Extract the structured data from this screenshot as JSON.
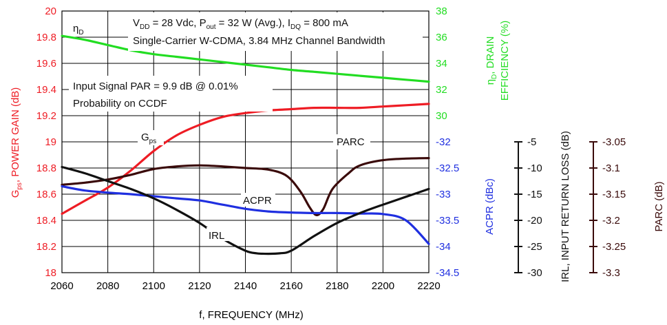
{
  "colors": {
    "gps": "#ee1c24",
    "eff": "#22dd22",
    "acpr": "#1f2fe0",
    "irl": "#111111",
    "parc": "#3a0a0a",
    "axis": "#000000"
  },
  "labels": {
    "x_title": "f, FREQUENCY (MHz)",
    "gps_axis_main": ", POWER GAIN (dB)",
    "gps_axis_G": "G",
    "gps_axis_sub": "ps",
    "eff_axis_line1_eta": "η",
    "eff_axis_line1_sub": "D",
    "eff_axis_line1_rest": ", DRAIN",
    "eff_axis_line2": "EFFICIENCY (%)",
    "acpr_axis": "ACPR (dBc)",
    "irl_axis": "IRL, INPUT RETURN LOSS (dB)",
    "parc_axis": "PARC (dB)",
    "series_eta": "η",
    "series_eta_sub": "D",
    "series_gps": "G",
    "series_gps_sub": "ps",
    "series_parc": "PARC",
    "series_acpr": "ACPR",
    "series_irl": "IRL",
    "cond_l1_a": "V",
    "cond_l1_a_sub": "DD",
    "cond_l1_b": " = 28 Vdc, P",
    "cond_l1_b_sub": "out",
    "cond_l1_c": " = 32 W (Avg.), I",
    "cond_l1_c_sub": "DQ",
    "cond_l1_d": " = 800 mA",
    "cond_l2": "Single-Carrier W-CDMA, 3.84 MHz Channel Bandwidth",
    "par_l1": "Input Signal PAR = 9.9 dB @ 0.01%",
    "par_l2": "Probability on CCDF"
  },
  "chart_data": {
    "type": "line",
    "x": [
      2060,
      2070,
      2080,
      2090,
      2100,
      2110,
      2120,
      2130,
      2140,
      2150,
      2160,
      2170,
      2180,
      2190,
      2200,
      2210,
      2220
    ],
    "xlim": [
      2060,
      2220
    ],
    "xticks": [
      "2060",
      "2080",
      "2100",
      "2120",
      "2140",
      "2160",
      "2180",
      "2200",
      "2220"
    ],
    "axes": {
      "gps": {
        "ylim": [
          18,
          20
        ],
        "ticks": [
          "20",
          "19.8",
          "19.6",
          "19.4",
          "19.2",
          "19",
          "18.8",
          "18.6",
          "18.4",
          "18.2",
          "18"
        ]
      },
      "eff": {
        "ylim": [
          30,
          38
        ],
        "ticks": [
          "38",
          "36",
          "34",
          "32",
          "30"
        ]
      },
      "acpr": {
        "ylim": [
          -34.5,
          -32
        ],
        "ticks": [
          "-32",
          "-32.5",
          "-33",
          "-33.5",
          "-34",
          "-34.5"
        ]
      },
      "irl": {
        "ylim": [
          -30,
          -5
        ],
        "ticks": [
          "-5",
          "-10",
          "-15",
          "-20",
          "-25",
          "-30"
        ]
      },
      "parc": {
        "ylim": [
          -3.3,
          -3.05
        ],
        "ticks": [
          "-3.05",
          "-3.1",
          "-3.15",
          "-3.2",
          "-3.25",
          "-3.3"
        ]
      }
    },
    "series": [
      {
        "name": "ηD",
        "axis": "eff",
        "x": [
          2060,
          2070,
          2080,
          2090,
          2100,
          2110,
          2120,
          2130,
          2140,
          2150,
          2160,
          2170,
          2180,
          2190,
          2200,
          2210,
          2220
        ],
        "values": [
          36.1,
          35.8,
          35.4,
          35.0,
          34.7,
          34.5,
          34.3,
          34.1,
          33.9,
          33.7,
          33.5,
          33.35,
          33.2,
          33.05,
          32.9,
          32.75,
          32.6
        ]
      },
      {
        "name": "Gps",
        "axis": "gps",
        "x": [
          2060,
          2070,
          2080,
          2090,
          2100,
          2110,
          2120,
          2130,
          2140,
          2150,
          2160,
          2170,
          2180,
          2190,
          2200,
          2210,
          2220
        ],
        "values": [
          18.45,
          18.55,
          18.65,
          18.78,
          18.93,
          19.05,
          19.13,
          19.19,
          19.22,
          19.24,
          19.25,
          19.26,
          19.26,
          19.26,
          19.27,
          19.28,
          19.29
        ]
      },
      {
        "name": "PARC",
        "axis": "parc",
        "x": [
          2060,
          2070,
          2080,
          2090,
          2100,
          2110,
          2120,
          2130,
          2140,
          2150,
          2158,
          2164,
          2168,
          2171,
          2174,
          2178,
          2185,
          2190,
          2200,
          2210,
          2220
        ],
        "values": [
          -3.132,
          -3.128,
          -3.122,
          -3.113,
          -3.102,
          -3.097,
          -3.095,
          -3.097,
          -3.1,
          -3.103,
          -3.115,
          -3.145,
          -3.175,
          -3.19,
          -3.178,
          -3.14,
          -3.11,
          -3.095,
          -3.085,
          -3.082,
          -3.081
        ]
      },
      {
        "name": "ACPR",
        "axis": "acpr",
        "x": [
          2060,
          2070,
          2080,
          2090,
          2100,
          2110,
          2120,
          2130,
          2140,
          2150,
          2160,
          2170,
          2180,
          2190,
          2200,
          2210,
          2220
        ],
        "values": [
          -32.85,
          -32.93,
          -32.97,
          -33.0,
          -33.04,
          -33.08,
          -33.12,
          -33.2,
          -33.28,
          -33.33,
          -33.35,
          -33.36,
          -33.36,
          -33.37,
          -33.38,
          -33.5,
          -33.95
        ]
      },
      {
        "name": "IRL",
        "axis": "irl",
        "x": [
          2060,
          2070,
          2080,
          2090,
          2100,
          2110,
          2120,
          2130,
          2140,
          2145,
          2150,
          2155,
          2160,
          2170,
          2180,
          2190,
          2200,
          2210,
          2220
        ],
        "values": [
          -9.8,
          -11.0,
          -12.5,
          -14.0,
          -15.8,
          -18.0,
          -20.5,
          -23.5,
          -25.8,
          -26.3,
          -26.4,
          -26.3,
          -25.8,
          -23.0,
          -20.5,
          -18.6,
          -17.0,
          -15.5,
          -14.0
        ]
      }
    ]
  }
}
